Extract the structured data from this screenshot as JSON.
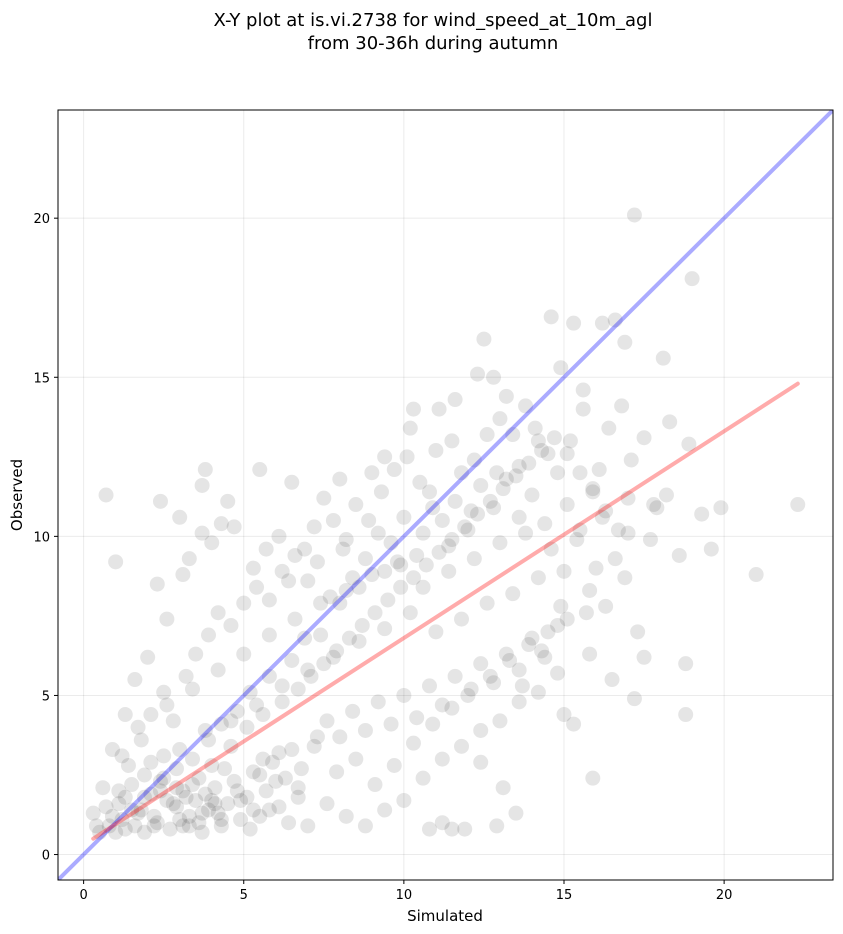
{
  "chart_data": {
    "type": "scatter",
    "title_line1": "X-Y plot at is.vi.2738 for wind_speed_at_10m_agl",
    "title_line2": "from 30-36h during autumn",
    "xlabel": "Simulated",
    "ylabel": "Observed",
    "xlim": [
      -0.8,
      23.4
    ],
    "ylim": [
      -0.8,
      23.4
    ],
    "xticks": [
      0,
      5,
      10,
      15,
      20
    ],
    "yticks": [
      0,
      5,
      10,
      15,
      20
    ],
    "grid": true,
    "point_color": "#000000",
    "point_opacity": 0.1,
    "identity_line": {
      "color": "#0000ff",
      "opacity": 0.33,
      "from": [
        -0.8,
        -0.8
      ],
      "to": [
        23.4,
        23.4
      ]
    },
    "fit_line": {
      "color": "#ff0000",
      "opacity": 0.33,
      "from": [
        0.3,
        0.5
      ],
      "to": [
        22.3,
        14.8
      ]
    },
    "points": [
      [
        0.7,
        11.3
      ],
      [
        1.0,
        9.2
      ],
      [
        2.4,
        11.1
      ],
      [
        3.0,
        10.6
      ],
      [
        3.8,
        12.1
      ],
      [
        3.7,
        11.6
      ],
      [
        4.5,
        11.1
      ],
      [
        5.5,
        12.1
      ],
      [
        6.5,
        11.7
      ],
      [
        7.5,
        11.2
      ],
      [
        8.0,
        11.8
      ],
      [
        9.0,
        12.0
      ],
      [
        9.4,
        12.5
      ],
      [
        10.2,
        13.4
      ],
      [
        10.3,
        14.0
      ],
      [
        11.1,
        14.0
      ],
      [
        11.6,
        14.3
      ],
      [
        12.3,
        15.1
      ],
      [
        12.5,
        16.2
      ],
      [
        12.8,
        15.0
      ],
      [
        13.2,
        14.4
      ],
      [
        14.6,
        16.9
      ],
      [
        15.3,
        16.7
      ],
      [
        16.2,
        16.7
      ],
      [
        16.6,
        16.8
      ],
      [
        16.9,
        16.1
      ],
      [
        17.2,
        20.1
      ],
      [
        18.1,
        15.6
      ],
      [
        19.0,
        18.1
      ],
      [
        22.3,
        11.0
      ],
      [
        21.0,
        8.8
      ],
      [
        19.6,
        9.6
      ],
      [
        18.8,
        6.0
      ],
      [
        18.8,
        4.4
      ],
      [
        15.9,
        2.4
      ],
      [
        15.3,
        4.1
      ],
      [
        13.1,
        2.1
      ],
      [
        12.9,
        0.9
      ],
      [
        13.5,
        1.3
      ],
      [
        11.9,
        0.8
      ],
      [
        11.5,
        0.8
      ],
      [
        11.2,
        1.0
      ],
      [
        10.8,
        0.8
      ],
      [
        12.4,
        2.9
      ],
      [
        15.0,
        4.4
      ],
      [
        15.8,
        6.3
      ],
      [
        16.5,
        5.5
      ],
      [
        17.3,
        7.0
      ],
      [
        17.5,
        6.2
      ],
      [
        17.2,
        4.9
      ],
      [
        16.0,
        9.0
      ],
      [
        17.0,
        10.1
      ],
      [
        17.8,
        11.0
      ],
      [
        18.3,
        13.6
      ],
      [
        19.3,
        10.7
      ],
      [
        18.9,
        12.9
      ],
      [
        19.9,
        10.9
      ],
      [
        18.6,
        9.4
      ],
      [
        15.6,
        14.0
      ],
      [
        14.2,
        13.0
      ],
      [
        13.6,
        12.2
      ],
      [
        12.9,
        12.0
      ],
      [
        12.1,
        10.8
      ],
      [
        11.4,
        9.7
      ],
      [
        10.9,
        10.9
      ],
      [
        10.6,
        10.1
      ],
      [
        9.9,
        9.1
      ],
      [
        9.4,
        8.9
      ],
      [
        8.6,
        8.4
      ],
      [
        8.0,
        7.9
      ],
      [
        7.4,
        6.9
      ],
      [
        6.9,
        6.8
      ],
      [
        6.5,
        6.1
      ],
      [
        5.8,
        5.6
      ],
      [
        5.2,
        5.1
      ],
      [
        4.8,
        4.5
      ],
      [
        4.3,
        4.1
      ],
      [
        3.9,
        3.6
      ],
      [
        3.4,
        3.0
      ],
      [
        2.9,
        2.7
      ],
      [
        2.4,
        2.3
      ],
      [
        1.9,
        1.8
      ],
      [
        1.5,
        1.4
      ],
      [
        1.2,
        1.1
      ],
      [
        0.8,
        0.9
      ],
      [
        0.5,
        0.7
      ],
      [
        0.3,
        1.3
      ],
      [
        0.6,
        2.1
      ],
      [
        0.9,
        3.3
      ],
      [
        1.3,
        4.4
      ],
      [
        1.6,
        5.5
      ],
      [
        2.0,
        6.2
      ],
      [
        2.3,
        8.5
      ],
      [
        2.6,
        7.4
      ],
      [
        3.1,
        8.8
      ],
      [
        3.3,
        9.3
      ],
      [
        3.7,
        10.1
      ],
      [
        4.0,
        9.8
      ],
      [
        4.3,
        10.4
      ],
      [
        4.7,
        10.3
      ],
      [
        5.3,
        9.0
      ],
      [
        5.7,
        9.6
      ],
      [
        6.1,
        10.0
      ],
      [
        6.4,
        8.6
      ],
      [
        6.9,
        9.6
      ],
      [
        7.2,
        10.3
      ],
      [
        7.8,
        10.5
      ],
      [
        8.2,
        9.9
      ],
      [
        8.5,
        11.0
      ],
      [
        8.9,
        10.5
      ],
      [
        9.3,
        11.4
      ],
      [
        9.7,
        12.1
      ],
      [
        10.1,
        12.5
      ],
      [
        10.5,
        11.7
      ],
      [
        11.0,
        12.7
      ],
      [
        11.5,
        13.0
      ],
      [
        11.8,
        12.0
      ],
      [
        12.2,
        12.4
      ],
      [
        12.6,
        13.2
      ],
      [
        13.0,
        13.7
      ],
      [
        13.4,
        13.2
      ],
      [
        13.8,
        14.1
      ],
      [
        14.1,
        13.4
      ],
      [
        14.5,
        12.6
      ],
      [
        14.9,
        15.3
      ],
      [
        15.2,
        13.0
      ],
      [
        15.6,
        14.6
      ],
      [
        16.1,
        12.1
      ],
      [
        16.4,
        13.4
      ],
      [
        16.8,
        14.1
      ],
      [
        1.1,
        2.0
      ],
      [
        1.4,
        2.8
      ],
      [
        1.8,
        3.6
      ],
      [
        2.1,
        4.4
      ],
      [
        2.5,
        5.1
      ],
      [
        2.8,
        4.2
      ],
      [
        3.2,
        5.6
      ],
      [
        3.5,
        6.3
      ],
      [
        3.9,
        6.9
      ],
      [
        4.2,
        7.6
      ],
      [
        4.6,
        7.2
      ],
      [
        5.0,
        7.9
      ],
      [
        5.4,
        8.4
      ],
      [
        5.8,
        8.0
      ],
      [
        6.2,
        8.9
      ],
      [
        6.6,
        9.4
      ],
      [
        7.0,
        8.6
      ],
      [
        7.3,
        9.2
      ],
      [
        7.7,
        8.1
      ],
      [
        8.1,
        9.6
      ],
      [
        8.4,
        8.7
      ],
      [
        8.8,
        9.3
      ],
      [
        9.2,
        10.1
      ],
      [
        9.6,
        9.8
      ],
      [
        10.0,
        10.6
      ],
      [
        10.4,
        9.4
      ],
      [
        10.8,
        11.4
      ],
      [
        11.2,
        10.5
      ],
      [
        11.6,
        11.1
      ],
      [
        12.0,
        10.2
      ],
      [
        12.4,
        11.6
      ],
      [
        12.8,
        10.9
      ],
      [
        13.2,
        11.8
      ],
      [
        13.6,
        10.6
      ],
      [
        14.0,
        11.3
      ],
      [
        14.4,
        10.4
      ],
      [
        14.8,
        12.0
      ],
      [
        15.1,
        11.0
      ],
      [
        15.5,
        10.2
      ],
      [
        15.9,
        11.5
      ],
      [
        0.4,
        0.9
      ],
      [
        0.7,
        1.5
      ],
      [
        1.0,
        0.7
      ],
      [
        1.3,
        1.8
      ],
      [
        1.6,
        0.9
      ],
      [
        1.9,
        2.5
      ],
      [
        2.2,
        1.2
      ],
      [
        2.5,
        3.1
      ],
      [
        2.8,
        1.6
      ],
      [
        3.1,
        0.9
      ],
      [
        3.4,
        2.2
      ],
      [
        3.7,
        1.3
      ],
      [
        4.0,
        2.8
      ],
      [
        4.3,
        1.1
      ],
      [
        4.6,
        3.4
      ],
      [
        4.9,
        1.7
      ],
      [
        5.2,
        0.8
      ],
      [
        5.5,
        2.5
      ],
      [
        5.8,
        1.4
      ],
      [
        6.1,
        3.2
      ],
      [
        6.4,
        1.0
      ],
      [
        6.7,
        2.1
      ],
      [
        7.0,
        0.9
      ],
      [
        7.3,
        3.7
      ],
      [
        7.6,
        1.6
      ],
      [
        7.9,
        2.6
      ],
      [
        8.2,
        1.2
      ],
      [
        8.5,
        3.0
      ],
      [
        8.8,
        0.9
      ],
      [
        9.1,
        2.2
      ],
      [
        9.4,
        1.4
      ],
      [
        9.7,
        2.8
      ],
      [
        10.0,
        1.7
      ],
      [
        10.3,
        3.5
      ],
      [
        10.6,
        2.4
      ],
      [
        10.9,
        4.1
      ],
      [
        11.2,
        3.0
      ],
      [
        11.5,
        4.6
      ],
      [
        11.8,
        3.4
      ],
      [
        12.1,
        5.2
      ],
      [
        12.4,
        3.9
      ],
      [
        12.7,
        5.6
      ],
      [
        13.0,
        4.2
      ],
      [
        13.3,
        6.1
      ],
      [
        13.6,
        4.8
      ],
      [
        13.9,
        6.6
      ],
      [
        14.2,
        5.1
      ],
      [
        14.5,
        7.0
      ],
      [
        14.8,
        5.7
      ],
      [
        15.1,
        7.4
      ],
      [
        1.2,
        3.1
      ],
      [
        1.7,
        4.0
      ],
      [
        2.1,
        2.9
      ],
      [
        2.6,
        4.7
      ],
      [
        3.0,
        3.3
      ],
      [
        3.4,
        5.2
      ],
      [
        3.8,
        3.9
      ],
      [
        4.2,
        5.8
      ],
      [
        4.6,
        4.2
      ],
      [
        5.0,
        6.3
      ],
      [
        5.4,
        4.7
      ],
      [
        5.8,
        6.9
      ],
      [
        6.2,
        5.3
      ],
      [
        6.6,
        7.4
      ],
      [
        7.0,
        5.8
      ],
      [
        7.4,
        7.9
      ],
      [
        7.8,
        6.2
      ],
      [
        8.2,
        8.3
      ],
      [
        8.6,
        6.7
      ],
      [
        9.0,
        8.8
      ],
      [
        9.4,
        7.1
      ],
      [
        9.8,
        9.2
      ],
      [
        10.2,
        7.6
      ],
      [
        10.6,
        8.4
      ],
      [
        11.0,
        7.0
      ],
      [
        11.4,
        8.9
      ],
      [
        11.8,
        7.4
      ],
      [
        12.2,
        9.3
      ],
      [
        12.6,
        7.9
      ],
      [
        13.0,
        9.8
      ],
      [
        13.4,
        8.2
      ],
      [
        13.8,
        10.1
      ],
      [
        14.2,
        8.7
      ],
      [
        14.6,
        9.6
      ],
      [
        15.0,
        8.9
      ],
      [
        15.4,
        9.9
      ],
      [
        15.8,
        8.3
      ],
      [
        16.2,
        10.6
      ],
      [
        16.6,
        9.3
      ],
      [
        17.0,
        11.2
      ],
      [
        0.9,
        1.2
      ],
      [
        1.1,
        1.6
      ],
      [
        1.3,
        0.8
      ],
      [
        1.5,
        2.2
      ],
      [
        1.7,
        1.3
      ],
      [
        1.9,
        0.7
      ],
      [
        2.1,
        1.9
      ],
      [
        2.3,
        1.0
      ],
      [
        2.5,
        2.4
      ],
      [
        2.7,
        0.8
      ],
      [
        2.9,
        1.5
      ],
      [
        3.1,
        2.0
      ],
      [
        3.3,
        0.9
      ],
      [
        3.5,
        1.7
      ],
      [
        3.7,
        0.7
      ],
      [
        3.9,
        1.4
      ],
      [
        4.1,
        2.1
      ],
      [
        4.3,
        0.9
      ],
      [
        4.5,
        1.6
      ],
      [
        4.7,
        2.3
      ],
      [
        4.9,
        1.1
      ],
      [
        5.1,
        1.8
      ],
      [
        5.3,
        2.6
      ],
      [
        5.5,
        1.2
      ],
      [
        5.7,
        2.0
      ],
      [
        5.9,
        2.9
      ],
      [
        6.1,
        1.5
      ],
      [
        6.3,
        2.4
      ],
      [
        6.5,
        3.3
      ],
      [
        6.7,
        1.8
      ],
      [
        3.2,
        1.8
      ],
      [
        3.6,
        2.4
      ],
      [
        4.1,
        1.6
      ],
      [
        4.4,
        2.7
      ],
      [
        2.9,
        2.1
      ],
      [
        3.3,
        1.2
      ],
      [
        3.8,
        1.9
      ],
      [
        4.2,
        1.3
      ],
      [
        2.6,
        1.7
      ],
      [
        2.2,
        0.9
      ],
      [
        1.8,
        1.4
      ],
      [
        2.4,
        2.0
      ],
      [
        3.0,
        1.1
      ],
      [
        3.6,
        1.0
      ],
      [
        4.0,
        1.7
      ],
      [
        4.8,
        2.0
      ],
      [
        5.3,
        1.4
      ],
      [
        5.6,
        3.0
      ],
      [
        6.0,
        2.3
      ],
      [
        6.8,
        2.7
      ],
      [
        7.2,
        3.4
      ],
      [
        7.6,
        4.2
      ],
      [
        8.0,
        3.7
      ],
      [
        8.4,
        4.5
      ],
      [
        8.8,
        3.9
      ],
      [
        9.2,
        4.8
      ],
      [
        9.6,
        4.1
      ],
      [
        10.0,
        5.0
      ],
      [
        10.4,
        4.3
      ],
      [
        10.8,
        5.3
      ],
      [
        11.2,
        4.7
      ],
      [
        11.6,
        5.6
      ],
      [
        12.0,
        5.0
      ],
      [
        12.4,
        6.0
      ],
      [
        12.8,
        5.4
      ],
      [
        13.2,
        6.3
      ],
      [
        13.6,
        5.8
      ],
      [
        14.0,
        6.8
      ],
      [
        14.4,
        6.2
      ],
      [
        14.8,
        7.2
      ],
      [
        5.1,
        4.0
      ],
      [
        5.6,
        4.4
      ],
      [
        6.2,
        4.8
      ],
      [
        6.7,
        5.2
      ],
      [
        7.1,
        5.6
      ],
      [
        7.5,
        6.0
      ],
      [
        7.9,
        6.4
      ],
      [
        8.3,
        6.8
      ],
      [
        8.7,
        7.2
      ],
      [
        9.1,
        7.6
      ],
      [
        9.5,
        8.0
      ],
      [
        9.9,
        8.4
      ],
      [
        10.3,
        8.7
      ],
      [
        10.7,
        9.1
      ],
      [
        11.1,
        9.5
      ],
      [
        11.5,
        9.9
      ],
      [
        11.9,
        10.3
      ],
      [
        12.3,
        10.7
      ],
      [
        12.7,
        11.1
      ],
      [
        13.1,
        11.5
      ],
      [
        13.5,
        11.9
      ],
      [
        13.9,
        12.3
      ],
      [
        14.3,
        12.7
      ],
      [
        14.7,
        13.1
      ],
      [
        15.1,
        12.6
      ],
      [
        15.5,
        12.0
      ],
      [
        15.9,
        11.4
      ],
      [
        16.3,
        10.8
      ],
      [
        16.7,
        10.2
      ],
      [
        17.1,
        12.4
      ],
      [
        17.5,
        13.1
      ],
      [
        17.9,
        10.9
      ],
      [
        18.2,
        11.3
      ],
      [
        17.7,
        9.9
      ],
      [
        16.9,
        8.7
      ],
      [
        16.3,
        7.8
      ],
      [
        15.7,
        7.6
      ],
      [
        14.9,
        7.8
      ],
      [
        14.3,
        6.4
      ],
      [
        13.7,
        5.3
      ]
    ]
  }
}
